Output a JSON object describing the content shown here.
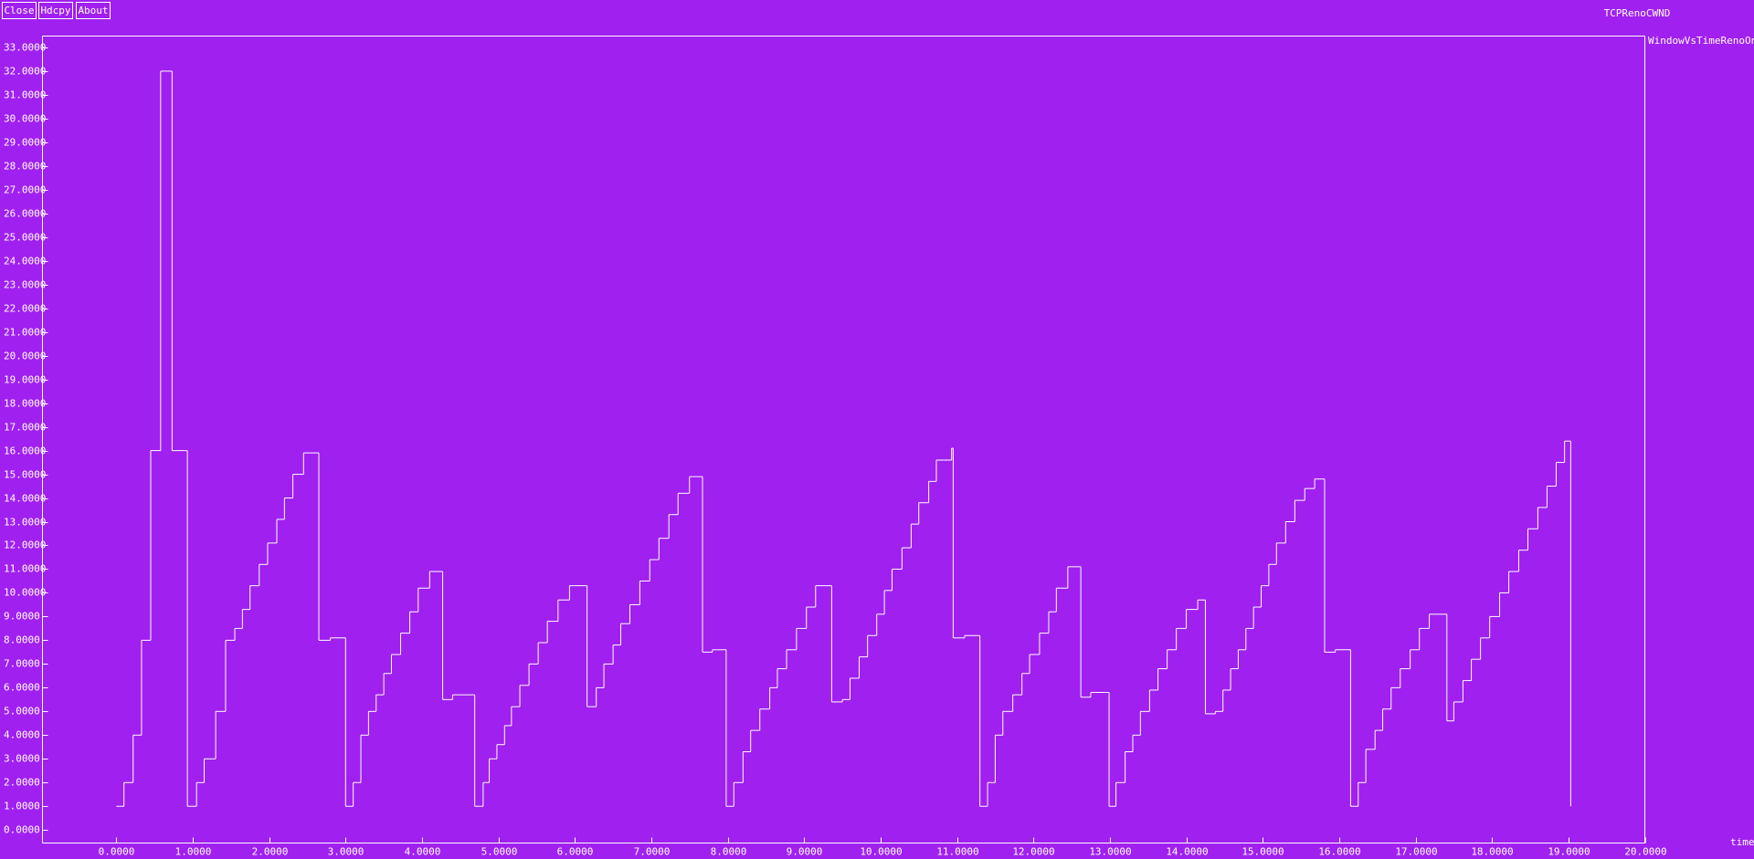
{
  "window": {
    "buttons": [
      "Close",
      "Hdcpy",
      "About"
    ]
  },
  "chart_data": {
    "type": "line",
    "drawstyle": "steps-post",
    "title": "TCPRenoCWND",
    "xlabel": "time",
    "background": "#a020f0",
    "series": [
      {
        "name": "WindowVsTimeRenoOne",
        "color": "#ffffff",
        "x": [
          0,
          0.1,
          0.22,
          0.33,
          0.45,
          0.58,
          0.73,
          0.93,
          1.05,
          1.15,
          1.3,
          1.43,
          1.55,
          1.65,
          1.75,
          1.87,
          1.98,
          2.1,
          2.2,
          2.31,
          2.45,
          2.65,
          2.8,
          3.0,
          3.1,
          3.2,
          3.3,
          3.4,
          3.5,
          3.6,
          3.72,
          3.84,
          3.95,
          4.1,
          4.27,
          4.4,
          4.69,
          4.8,
          4.88,
          4.98,
          5.08,
          5.17,
          5.28,
          5.4,
          5.52,
          5.64,
          5.78,
          5.93,
          6.16,
          6.28,
          6.38,
          6.5,
          6.6,
          6.72,
          6.85,
          6.98,
          7.1,
          7.23,
          7.35,
          7.5,
          7.67,
          7.8,
          7.98,
          8.08,
          8.2,
          8.3,
          8.42,
          8.55,
          8.65,
          8.77,
          8.9,
          9.03,
          9.15,
          9.36,
          9.5,
          9.6,
          9.72,
          9.83,
          9.95,
          10.05,
          10.15,
          10.28,
          10.4,
          10.5,
          10.63,
          10.73,
          10.93,
          10.95,
          11.1,
          11.3,
          11.4,
          11.5,
          11.6,
          11.73,
          11.85,
          11.95,
          12.08,
          12.2,
          12.3,
          12.45,
          12.62,
          12.75,
          12.99,
          13.08,
          13.2,
          13.3,
          13.4,
          13.52,
          13.63,
          13.75,
          13.87,
          14.0,
          14.15,
          14.25,
          14.38,
          14.48,
          14.58,
          14.68,
          14.78,
          14.88,
          14.98,
          15.08,
          15.18,
          15.3,
          15.42,
          15.55,
          15.68,
          15.81,
          15.95,
          16.15,
          16.25,
          16.35,
          16.47,
          16.57,
          16.68,
          16.8,
          16.93,
          17.05,
          17.18,
          17.41,
          17.5,
          17.62,
          17.73,
          17.85,
          17.97,
          18.1,
          18.22,
          18.35,
          18.47,
          18.6,
          18.72,
          18.84,
          18.95,
          19.03
        ],
        "values": [
          1,
          2,
          4,
          8,
          16,
          32,
          16,
          1,
          2,
          3,
          5,
          8,
          8.5,
          9.3,
          10.3,
          11.2,
          12.1,
          13.1,
          14,
          15,
          15.9,
          8,
          8.1,
          1,
          2,
          4,
          5,
          5.7,
          6.6,
          7.4,
          8.3,
          9.2,
          10.2,
          10.9,
          5.5,
          5.7,
          1,
          2,
          3,
          3.6,
          4.4,
          5.2,
          6.1,
          7,
          7.9,
          8.8,
          9.7,
          10.3,
          5.2,
          6,
          7,
          7.8,
          8.7,
          9.5,
          10.5,
          11.4,
          12.3,
          13.3,
          14.2,
          14.9,
          7.5,
          7.6,
          1,
          2,
          3.3,
          4.2,
          5.1,
          6,
          6.8,
          7.6,
          8.5,
          9.4,
          10.3,
          5.4,
          5.5,
          6.4,
          7.3,
          8.2,
          9.1,
          10.1,
          11,
          11.9,
          12.9,
          13.8,
          14.7,
          15.6,
          16.1,
          8.1,
          8.2,
          1,
          2,
          4,
          5,
          5.7,
          6.6,
          7.4,
          8.3,
          9.2,
          10.2,
          11.1,
          5.6,
          5.8,
          1,
          2,
          3.3,
          4,
          5,
          5.9,
          6.8,
          7.6,
          8.5,
          9.3,
          9.7,
          4.9,
          5,
          5.9,
          6.8,
          7.6,
          8.5,
          9.4,
          10.3,
          11.2,
          12.1,
          13,
          13.9,
          14.4,
          14.8,
          7.5,
          7.6,
          1,
          2,
          3.4,
          4.2,
          5.1,
          6,
          6.8,
          7.6,
          8.5,
          9.1,
          4.6,
          5.4,
          6.3,
          7.2,
          8.1,
          9,
          10,
          10.9,
          11.8,
          12.7,
          13.6,
          14.5,
          15.5,
          16.4,
          1
        ]
      }
    ],
    "xlim": [
      -0.966,
      20
    ],
    "ylim": [
      -0.55,
      33.48
    ],
    "xticks": [
      {
        "value": 0,
        "label": "0.0000"
      },
      {
        "value": 1,
        "label": "1.0000"
      },
      {
        "value": 2,
        "label": "2.0000"
      },
      {
        "value": 3,
        "label": "3.0000"
      },
      {
        "value": 4,
        "label": "4.0000"
      },
      {
        "value": 5,
        "label": "5.0000"
      },
      {
        "value": 6,
        "label": "6.0000"
      },
      {
        "value": 7,
        "label": "7.0000"
      },
      {
        "value": 8,
        "label": "8.0000"
      },
      {
        "value": 9,
        "label": "9.0000"
      },
      {
        "value": 10,
        "label": "10.0000"
      },
      {
        "value": 11,
        "label": "11.0000"
      },
      {
        "value": 12,
        "label": "12.0000"
      },
      {
        "value": 13,
        "label": "13.0000"
      },
      {
        "value": 14,
        "label": "14.0000"
      },
      {
        "value": 15,
        "label": "15.0000"
      },
      {
        "value": 16,
        "label": "16.0000"
      },
      {
        "value": 17,
        "label": "17.0000"
      },
      {
        "value": 18,
        "label": "18.0000"
      },
      {
        "value": 19,
        "label": "19.0000"
      },
      {
        "value": 20,
        "label": "20.0000"
      }
    ],
    "yticks": [
      {
        "value": 0,
        "label": "0.0000"
      },
      {
        "value": 1,
        "label": "1.0000"
      },
      {
        "value": 2,
        "label": "2.0000"
      },
      {
        "value": 3,
        "label": "3.0000"
      },
      {
        "value": 4,
        "label": "4.0000"
      },
      {
        "value": 5,
        "label": "5.0000"
      },
      {
        "value": 6,
        "label": "6.0000"
      },
      {
        "value": 7,
        "label": "7.0000"
      },
      {
        "value": 8,
        "label": "8.0000"
      },
      {
        "value": 9,
        "label": "9.0000"
      },
      {
        "value": 10,
        "label": "10.0000"
      },
      {
        "value": 11,
        "label": "11.0000"
      },
      {
        "value": 12,
        "label": "12.0000"
      },
      {
        "value": 13,
        "label": "13.0000"
      },
      {
        "value": 14,
        "label": "14.0000"
      },
      {
        "value": 15,
        "label": "15.0000"
      },
      {
        "value": 16,
        "label": "16.0000"
      },
      {
        "value": 17,
        "label": "17.0000"
      },
      {
        "value": 18,
        "label": "18.0000"
      },
      {
        "value": 19,
        "label": "19.0000"
      },
      {
        "value": 20,
        "label": "20.0000"
      },
      {
        "value": 21,
        "label": "21.0000"
      },
      {
        "value": 22,
        "label": "22.0000"
      },
      {
        "value": 23,
        "label": "23.0000"
      },
      {
        "value": 24,
        "label": "24.0000"
      },
      {
        "value": 25,
        "label": "25.0000"
      },
      {
        "value": 26,
        "label": "26.0000"
      },
      {
        "value": 27,
        "label": "27.0000"
      },
      {
        "value": 28,
        "label": "28.0000"
      },
      {
        "value": 29,
        "label": "29.0000"
      },
      {
        "value": 30,
        "label": "30.0000"
      },
      {
        "value": 31,
        "label": "31.0000"
      },
      {
        "value": 32,
        "label": "32.0000"
      },
      {
        "value": 33,
        "label": "33.0000"
      }
    ]
  }
}
